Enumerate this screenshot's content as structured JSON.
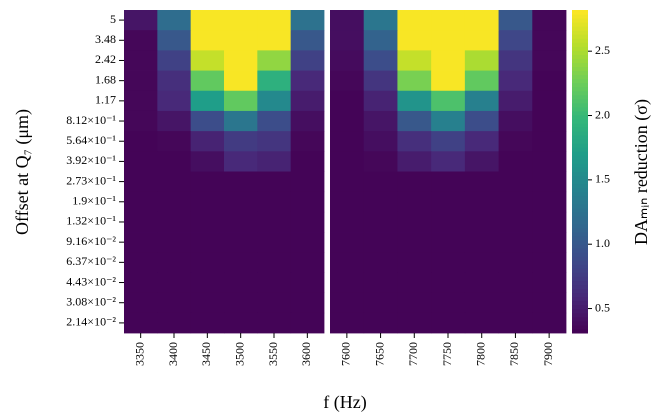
{
  "chart_data": {
    "type": "heatmap",
    "ylabel": "Offset at Q₇ (μm)",
    "xlabel": "f (Hz)",
    "colorbar_label": "DAₘᵢₙ reduction (σ)",
    "colormap": "viridis",
    "clim": [
      0.31,
      2.82
    ],
    "cticks": [
      0.5,
      {
        "value": 1,
        "label": "1.0"
      },
      1.5,
      {
        "value": 2,
        "label": "2.0"
      },
      2.5
    ],
    "rows": [
      "5",
      "3.48",
      "2.42",
      "1.68",
      "1.17",
      "8.12×10⁻¹",
      "5.64×10⁻¹",
      "3.92×10⁻¹",
      "2.73×10⁻¹",
      "1.9×10⁻¹",
      "1.32×10⁻¹",
      "9.16×10⁻²",
      "6.37×10⁻²",
      "4.43×10⁻²",
      "3.08×10⁻²",
      "2.14×10⁻²"
    ],
    "panels": [
      {
        "categories": [
          "3350",
          "3400",
          "3450",
          "3500",
          "3550",
          "3600"
        ],
        "values": [
          [
            0.45,
            1.2,
            2.8,
            2.8,
            2.8,
            1.25
          ],
          [
            0.35,
            1.0,
            2.8,
            2.8,
            2.8,
            1.0
          ],
          [
            0.35,
            0.8,
            2.6,
            2.8,
            2.4,
            0.8
          ],
          [
            0.35,
            0.65,
            2.2,
            2.8,
            1.9,
            0.6
          ],
          [
            0.35,
            0.6,
            1.7,
            2.2,
            1.5,
            0.5
          ],
          [
            0.35,
            0.45,
            0.9,
            1.3,
            0.9,
            0.4
          ],
          [
            0.33,
            0.35,
            0.55,
            0.75,
            0.7,
            0.35
          ],
          [
            0.33,
            0.33,
            0.4,
            0.6,
            0.55,
            0.33
          ],
          [
            0.33,
            0.33,
            0.33,
            0.33,
            0.33,
            0.33
          ],
          [
            0.33,
            0.33,
            0.33,
            0.33,
            0.33,
            0.33
          ],
          [
            0.33,
            0.33,
            0.33,
            0.33,
            0.33,
            0.33
          ],
          [
            0.33,
            0.33,
            0.33,
            0.33,
            0.33,
            0.33
          ],
          [
            0.33,
            0.33,
            0.33,
            0.33,
            0.33,
            0.33
          ],
          [
            0.33,
            0.33,
            0.33,
            0.33,
            0.33,
            0.33
          ],
          [
            0.33,
            0.33,
            0.33,
            0.33,
            0.33,
            0.33
          ],
          [
            0.33,
            0.33,
            0.33,
            0.33,
            0.33,
            0.33
          ]
        ]
      },
      {
        "categories": [
          "7600",
          "7650",
          "7700",
          "7750",
          "7800",
          "7850",
          "7900"
        ],
        "values": [
          [
            0.4,
            1.3,
            2.8,
            2.8,
            2.8,
            1.0,
            0.35
          ],
          [
            0.4,
            1.1,
            2.8,
            2.8,
            2.8,
            0.85,
            0.35
          ],
          [
            0.38,
            0.9,
            2.6,
            2.8,
            2.5,
            0.7,
            0.35
          ],
          [
            0.35,
            0.7,
            2.3,
            2.8,
            2.2,
            0.6,
            0.33
          ],
          [
            0.33,
            0.55,
            1.6,
            2.1,
            1.4,
            0.5,
            0.33
          ],
          [
            0.33,
            0.45,
            1.0,
            1.4,
            0.9,
            0.4,
            0.33
          ],
          [
            0.33,
            0.4,
            0.65,
            0.8,
            0.6,
            0.35,
            0.33
          ],
          [
            0.33,
            0.35,
            0.5,
            0.6,
            0.45,
            0.33,
            0.33
          ],
          [
            0.33,
            0.33,
            0.33,
            0.33,
            0.33,
            0.33,
            0.33
          ],
          [
            0.33,
            0.33,
            0.33,
            0.33,
            0.33,
            0.33,
            0.33
          ],
          [
            0.33,
            0.33,
            0.33,
            0.33,
            0.33,
            0.33,
            0.33
          ],
          [
            0.33,
            0.33,
            0.33,
            0.33,
            0.33,
            0.33,
            0.33
          ],
          [
            0.33,
            0.33,
            0.33,
            0.33,
            0.33,
            0.33,
            0.33
          ],
          [
            0.33,
            0.33,
            0.33,
            0.33,
            0.33,
            0.33,
            0.33
          ],
          [
            0.33,
            0.33,
            0.33,
            0.33,
            0.33,
            0.33,
            0.33
          ],
          [
            0.33,
            0.33,
            0.33,
            0.33,
            0.33,
            0.33,
            0.33
          ]
        ]
      }
    ]
  }
}
